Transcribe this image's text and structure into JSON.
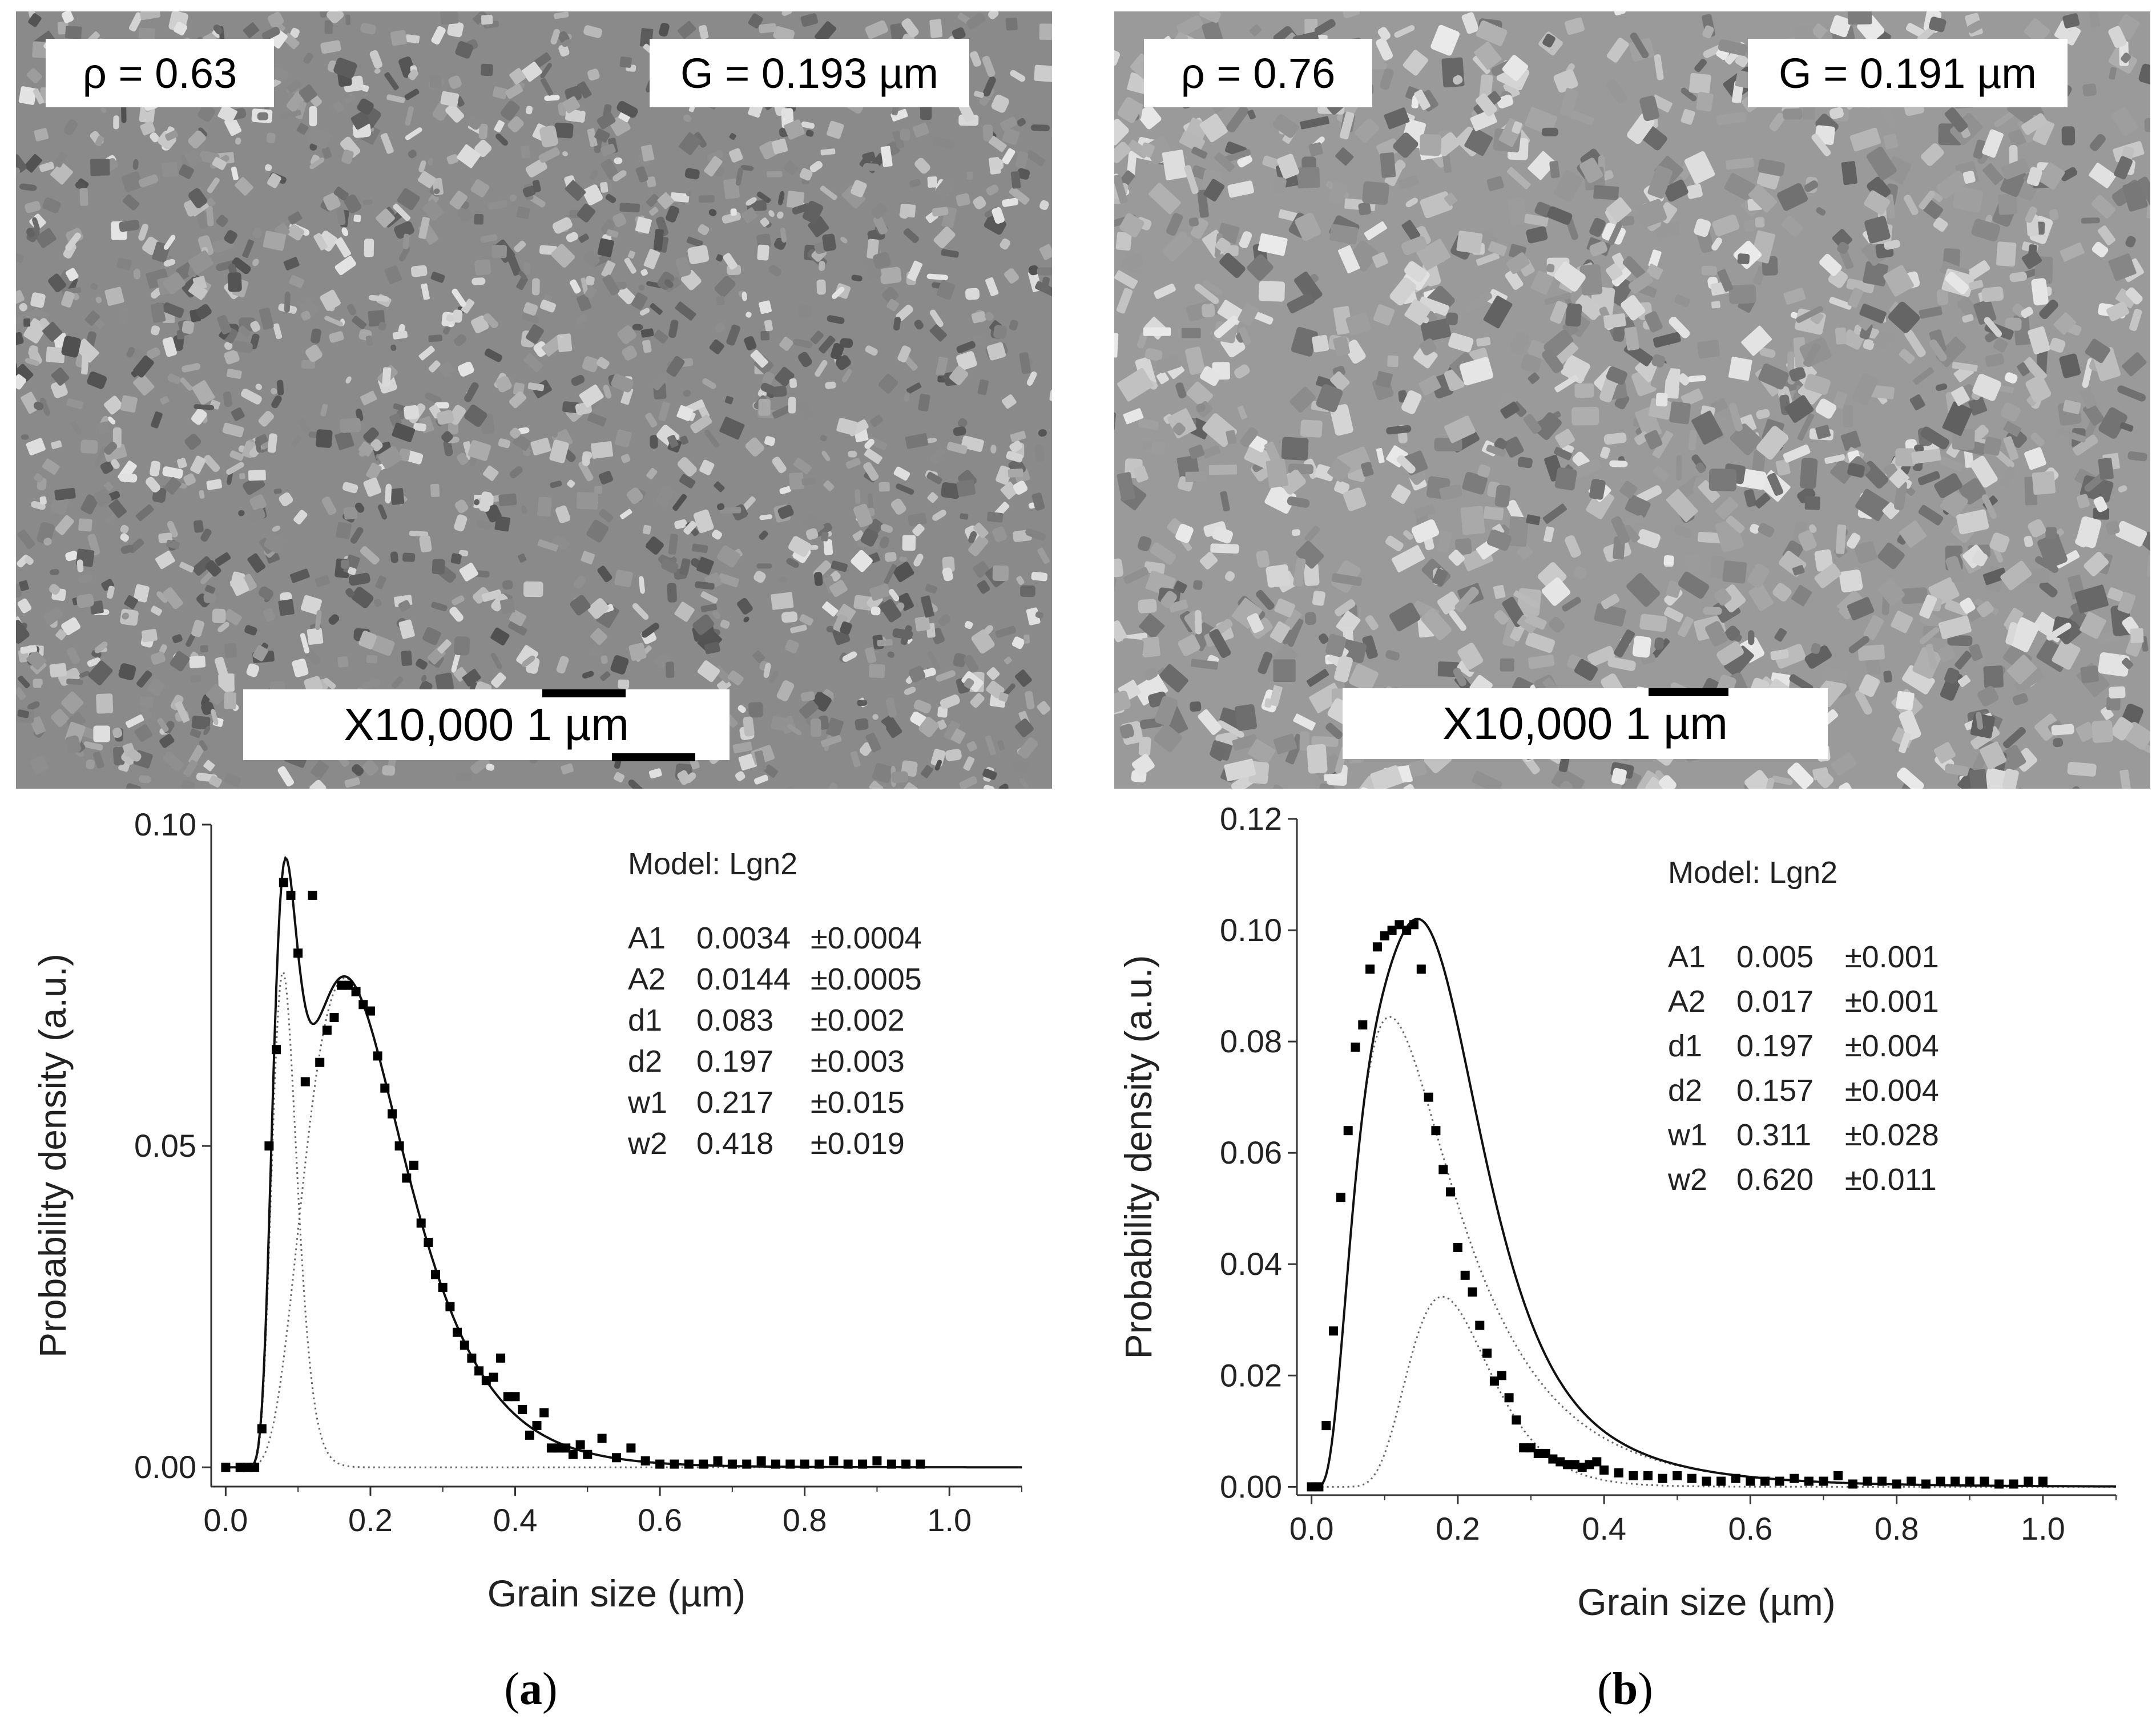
{
  "panels": [
    {
      "caption_open": "(",
      "caption_letter": "a",
      "caption_close": ")",
      "density_label": "ρ = 0.63",
      "grain_label": "G = 0.193 µm",
      "scale_label": "X10,000 1 µm",
      "micrograph_tone": "#8a8a8a"
    },
    {
      "caption_open": "(",
      "caption_letter": "b",
      "caption_close": ")",
      "density_label": "ρ = 0.76",
      "grain_label": "G = 0.191 µm",
      "scale_label": "X10,000 1 µm",
      "micrograph_tone": "#9a9a9a"
    }
  ],
  "chart_data": [
    {
      "type": "scatter",
      "xlabel": "Grain size (µm)",
      "ylabel": "Probability density (a.u.)",
      "xlim": [
        -0.02,
        1.1
      ],
      "ylim": [
        -0.003,
        0.1
      ],
      "xticks": [
        "0.0",
        "0.2",
        "0.4",
        "0.6",
        "0.8",
        "1.0"
      ],
      "xtick_values": [
        0.0,
        0.2,
        0.4,
        0.6,
        0.8,
        1.0
      ],
      "yticks": [
        "0.00",
        "0.05",
        "0.10"
      ],
      "ytick_values": [
        0.0,
        0.05,
        0.1
      ],
      "model_title": "Model: Lgn2",
      "params": [
        {
          "name": "A1",
          "value": "0.0034",
          "error": "±0.0004"
        },
        {
          "name": "A2",
          "value": "0.0144",
          "error": "±0.0005"
        },
        {
          "name": "d1",
          "value": "0.083",
          "error": "±0.002"
        },
        {
          "name": "d2",
          "value": "0.197",
          "error": "±0.003"
        },
        {
          "name": "w1",
          "value": "0.217",
          "error": "±0.015"
        },
        {
          "name": "w2",
          "value": "0.418",
          "error": "±0.019"
        }
      ],
      "fit": {
        "A1": 0.0034,
        "A2": 0.0144,
        "d1": 0.083,
        "d2": 0.197,
        "w1": 0.217,
        "w2": 0.418
      },
      "x": [
        0.0,
        0.02,
        0.03,
        0.04,
        0.05,
        0.06,
        0.07,
        0.08,
        0.09,
        0.1,
        0.11,
        0.12,
        0.13,
        0.14,
        0.15,
        0.16,
        0.17,
        0.18,
        0.19,
        0.2,
        0.21,
        0.22,
        0.23,
        0.24,
        0.25,
        0.26,
        0.27,
        0.28,
        0.29,
        0.3,
        0.31,
        0.32,
        0.33,
        0.34,
        0.35,
        0.36,
        0.37,
        0.38,
        0.39,
        0.4,
        0.41,
        0.42,
        0.43,
        0.44,
        0.45,
        0.46,
        0.47,
        0.48,
        0.49,
        0.5,
        0.52,
        0.54,
        0.56,
        0.58,
        0.6,
        0.62,
        0.64,
        0.66,
        0.68,
        0.7,
        0.72,
        0.74,
        0.76,
        0.78,
        0.8,
        0.82,
        0.84,
        0.86,
        0.88,
        0.9,
        0.92,
        0.94,
        0.96
      ],
      "y": [
        0.0,
        0.0,
        0.0,
        0.0,
        0.006,
        0.05,
        0.065,
        0.091,
        0.089,
        0.08,
        0.06,
        0.089,
        0.063,
        0.068,
        0.07,
        0.075,
        0.075,
        0.074,
        0.072,
        0.071,
        0.064,
        0.059,
        0.055,
        0.05,
        0.045,
        0.047,
        0.038,
        0.035,
        0.03,
        0.028,
        0.025,
        0.021,
        0.019,
        0.017,
        0.015,
        0.0135,
        0.014,
        0.017,
        0.011,
        0.011,
        0.009,
        0.005,
        0.0065,
        0.0085,
        0.003,
        0.003,
        0.003,
        0.002,
        0.0035,
        0.002,
        0.0045,
        0.0015,
        0.003,
        0.001,
        0.0005,
        0.0005,
        0.0005,
        0.0005,
        0.001,
        0.0005,
        0.0005,
        0.001,
        0.0005,
        0.0005,
        0.0005,
        0.0005,
        0.001,
        0.0005,
        0.0005,
        0.001,
        0.0005,
        0.0005,
        0.0005
      ]
    },
    {
      "type": "scatter",
      "xlabel": "Grain size (µm)",
      "ylabel": "Probability density (a.u.)",
      "xlim": [
        -0.02,
        1.1
      ],
      "ylim": [
        -0.0015,
        0.12
      ],
      "xticks": [
        "0.0",
        "0.2",
        "0.4",
        "0.6",
        "0.8",
        "1.0"
      ],
      "xtick_values": [
        0.0,
        0.2,
        0.4,
        0.6,
        0.8,
        1.0
      ],
      "yticks": [
        "0.00",
        "0.02",
        "0.04",
        "0.06",
        "0.08",
        "0.10",
        "0.12"
      ],
      "ytick_values": [
        0.0,
        0.02,
        0.04,
        0.06,
        0.08,
        0.1,
        0.12
      ],
      "model_title": "Model: Lgn2",
      "params": [
        {
          "name": "A1",
          "value": "0.005",
          "error": "±0.001"
        },
        {
          "name": "A2",
          "value": "0.017",
          "error": "±0.001"
        },
        {
          "name": "d1",
          "value": "0.197",
          "error": "±0.004"
        },
        {
          "name": "d2",
          "value": "0.157",
          "error": "±0.004"
        },
        {
          "name": "w1",
          "value": "0.311",
          "error": "±0.028"
        },
        {
          "name": "w2",
          "value": "0.620",
          "error": "±0.011"
        }
      ],
      "fit": {
        "A1": 0.005,
        "A2": 0.017,
        "d1": 0.197,
        "d2": 0.157,
        "w1": 0.311,
        "w2": 0.62
      },
      "x": [
        0.0,
        0.01,
        0.02,
        0.03,
        0.04,
        0.05,
        0.06,
        0.07,
        0.08,
        0.09,
        0.1,
        0.11,
        0.12,
        0.13,
        0.14,
        0.15,
        0.16,
        0.17,
        0.18,
        0.19,
        0.2,
        0.21,
        0.22,
        0.23,
        0.24,
        0.25,
        0.26,
        0.27,
        0.28,
        0.29,
        0.3,
        0.31,
        0.32,
        0.33,
        0.34,
        0.35,
        0.36,
        0.37,
        0.38,
        0.39,
        0.4,
        0.42,
        0.44,
        0.46,
        0.48,
        0.5,
        0.52,
        0.54,
        0.56,
        0.58,
        0.6,
        0.62,
        0.64,
        0.66,
        0.68,
        0.7,
        0.72,
        0.74,
        0.76,
        0.78,
        0.8,
        0.82,
        0.84,
        0.86,
        0.88,
        0.9,
        0.92,
        0.94,
        0.96,
        0.98,
        1.0
      ],
      "y": [
        0.0,
        0.0,
        0.011,
        0.028,
        0.052,
        0.064,
        0.079,
        0.083,
        0.093,
        0.097,
        0.099,
        0.1,
        0.101,
        0.1,
        0.101,
        0.093,
        0.07,
        0.064,
        0.057,
        0.053,
        0.043,
        0.038,
        0.035,
        0.029,
        0.024,
        0.019,
        0.02,
        0.016,
        0.012,
        0.007,
        0.007,
        0.006,
        0.006,
        0.005,
        0.0045,
        0.004,
        0.004,
        0.0035,
        0.004,
        0.0045,
        0.003,
        0.0025,
        0.002,
        0.002,
        0.0015,
        0.002,
        0.0015,
        0.001,
        0.001,
        0.0015,
        0.001,
        0.001,
        0.001,
        0.0015,
        0.001,
        0.001,
        0.002,
        0.0005,
        0.001,
        0.001,
        0.0005,
        0.001,
        0.0005,
        0.001,
        0.001,
        0.001,
        0.001,
        0.0005,
        0.0005,
        0.001,
        0.001
      ]
    }
  ]
}
